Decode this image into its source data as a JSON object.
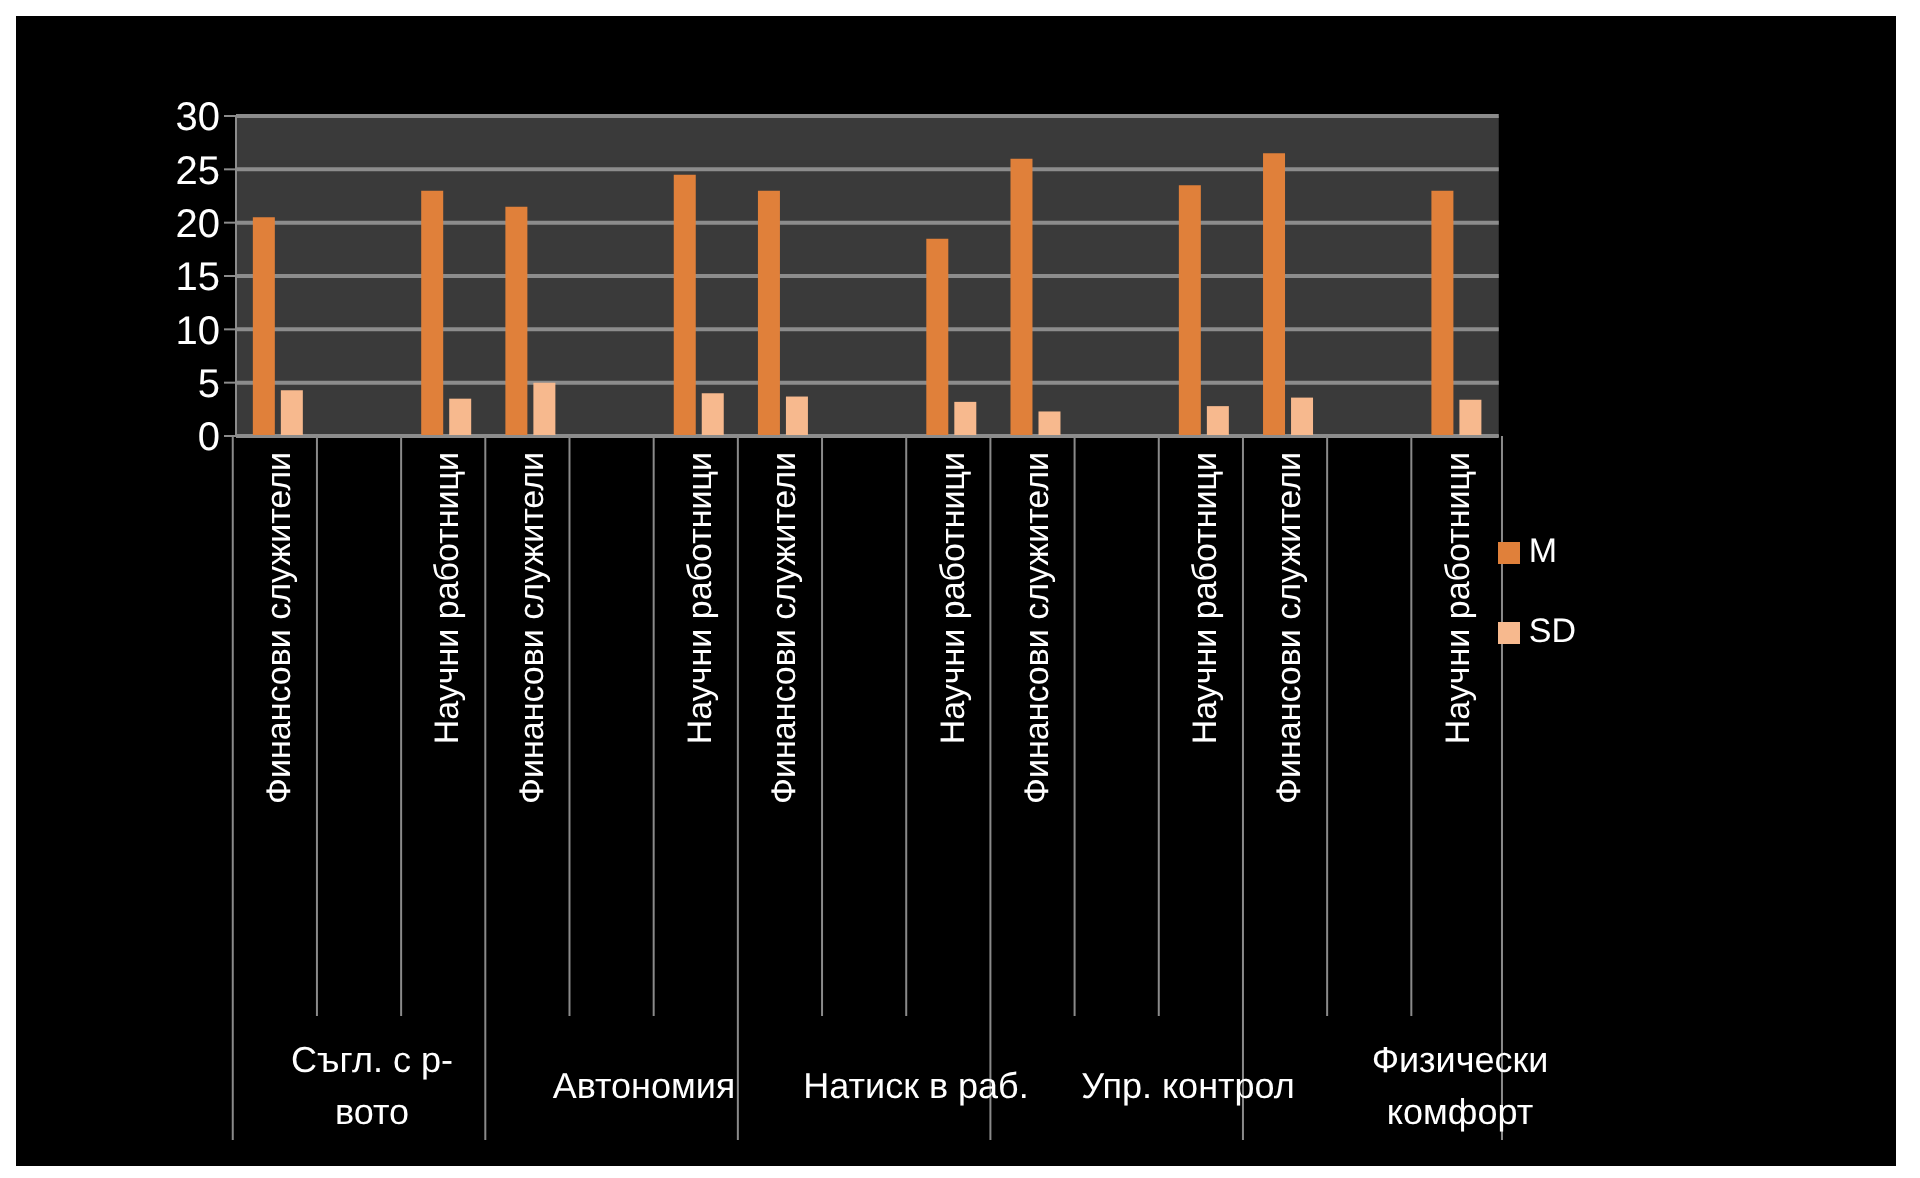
{
  "chart_data": {
    "type": "bar",
    "categories": [
      "Финансови служители",
      null,
      "Научни работници",
      "Финансови служители",
      null,
      "Научни работници",
      "Финансови служители",
      null,
      "Научни работници",
      "Финансови служители",
      null,
      "Научни работници",
      "Финансови служители",
      null,
      "Научни работници"
    ],
    "series": [
      {
        "name": "M",
        "color": "#e0803a",
        "values": [
          20.5,
          null,
          23,
          21.5,
          null,
          24.5,
          23,
          null,
          18.5,
          26,
          null,
          23.5,
          26.5,
          null,
          23
        ]
      },
      {
        "name": "SD",
        "color": "#f7b98e",
        "values": [
          4.3,
          null,
          3.5,
          5,
          null,
          4,
          3.7,
          null,
          3.2,
          2.3,
          null,
          2.8,
          3.6,
          null,
          3.4
        ]
      }
    ],
    "annotations": [
      "Съгл. с р-вото",
      "Автономия",
      "Натиск в раб.",
      "Упр. контрол",
      "Физически комфорт"
    ],
    "ylim": [
      0,
      30
    ],
    "yticks": [
      0,
      5,
      10,
      15,
      20,
      25,
      30
    ],
    "grid": "y",
    "legend": "right"
  }
}
